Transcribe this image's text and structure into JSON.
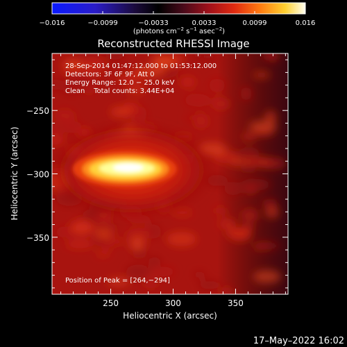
{
  "colorbar": {
    "ticks": [
      "−0.016",
      "−0.0099",
      "−0.0033",
      "0.0033",
      "0.0099",
      "0.016"
    ],
    "units": "(photons cm",
    "units_exp1": "−2",
    "units_mid": " s",
    "units_exp2": "−1",
    "units_mid2": " asec",
    "units_exp3": "−2",
    "units_end": ")"
  },
  "chart_data": {
    "type": "heatmap",
    "title": "Reconstructed RHESSI Image",
    "xlabel": "Heliocentric X (arcsec)",
    "ylabel": "Heliocentric Y (arcsec)",
    "xlim": [
      203,
      392
    ],
    "ylim": [
      -395,
      -205
    ],
    "xticks": [
      "250",
      "300",
      "350"
    ],
    "yticks": [
      "−250",
      "−300",
      "−350"
    ],
    "xtick_values": [
      250,
      300,
      350
    ],
    "ytick_values": [
      -250,
      -300,
      -350
    ],
    "colorbar_range": [
      -0.016,
      0.016
    ],
    "colormap": "IDL red-temperature (blue-black-red-yellow-white)",
    "source": {
      "peak_x": 264,
      "peak_y": -294,
      "peak_value": 0.016
    },
    "annotations": [
      "28-Sep-2014 01:47:12.000 to 01:53:12.000",
      "Detectors: 3F 6F 9F, Att 0",
      "Energy Range: 12.0 − 25.0 keV",
      "Clean    Total counts: 3.44E+04"
    ],
    "peak_label": "Position of Peak = [264,−294]"
  },
  "footer": {
    "timestamp": "17–May–2022 16:02"
  }
}
